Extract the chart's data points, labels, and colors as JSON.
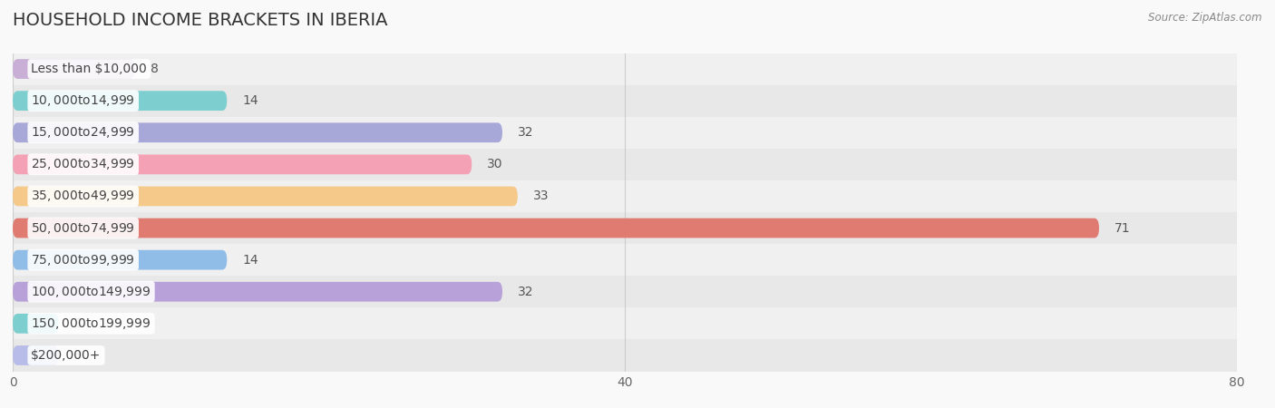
{
  "title": "HOUSEHOLD INCOME BRACKETS IN IBERIA",
  "source": "Source: ZipAtlas.com",
  "categories": [
    "Less than $10,000",
    "$10,000 to $14,999",
    "$15,000 to $24,999",
    "$25,000 to $34,999",
    "$35,000 to $49,999",
    "$50,000 to $74,999",
    "$75,000 to $99,999",
    "$100,000 to $149,999",
    "$150,000 to $199,999",
    "$200,000+"
  ],
  "values": [
    8,
    14,
    32,
    30,
    33,
    71,
    14,
    32,
    3,
    3
  ],
  "bar_colors": [
    "#c9aed6",
    "#7dcfcf",
    "#a8a8d8",
    "#f4a0b5",
    "#f5c98a",
    "#e07b72",
    "#90bce8",
    "#b8a0d8",
    "#7dcfcf",
    "#b8bce8"
  ],
  "bar_row_colors": [
    "#f0f0f0",
    "#e8e8e8",
    "#f0f0f0",
    "#e8e8e8",
    "#f0f0f0",
    "#e8e8e8",
    "#f0f0f0",
    "#e8e8e8",
    "#f0f0f0",
    "#e8e8e8"
  ],
  "xlim": [
    0,
    80
  ],
  "xticks": [
    0,
    40,
    80
  ],
  "background_color": "#f9f9f9",
  "title_fontsize": 14,
  "label_fontsize": 10,
  "value_fontsize": 10
}
